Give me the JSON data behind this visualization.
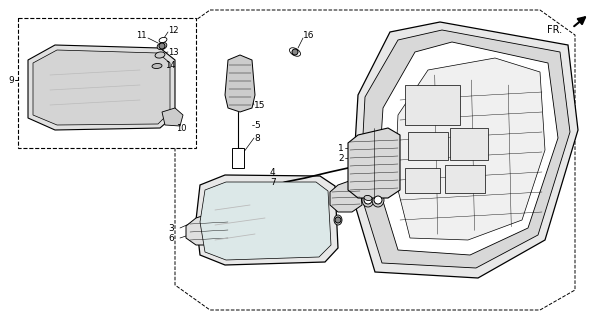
{
  "bg_color": "#ffffff",
  "line_color": "#000000",
  "gray1": "#cccccc",
  "gray2": "#e8e8e8",
  "gray3": "#aaaaaa",
  "fr_text": "FR.",
  "labels": [
    "1",
    "2",
    "3",
    "4",
    "5",
    "6",
    "7",
    "8",
    "9",
    "10",
    "11",
    "12",
    "13",
    "14",
    "15",
    "16"
  ]
}
